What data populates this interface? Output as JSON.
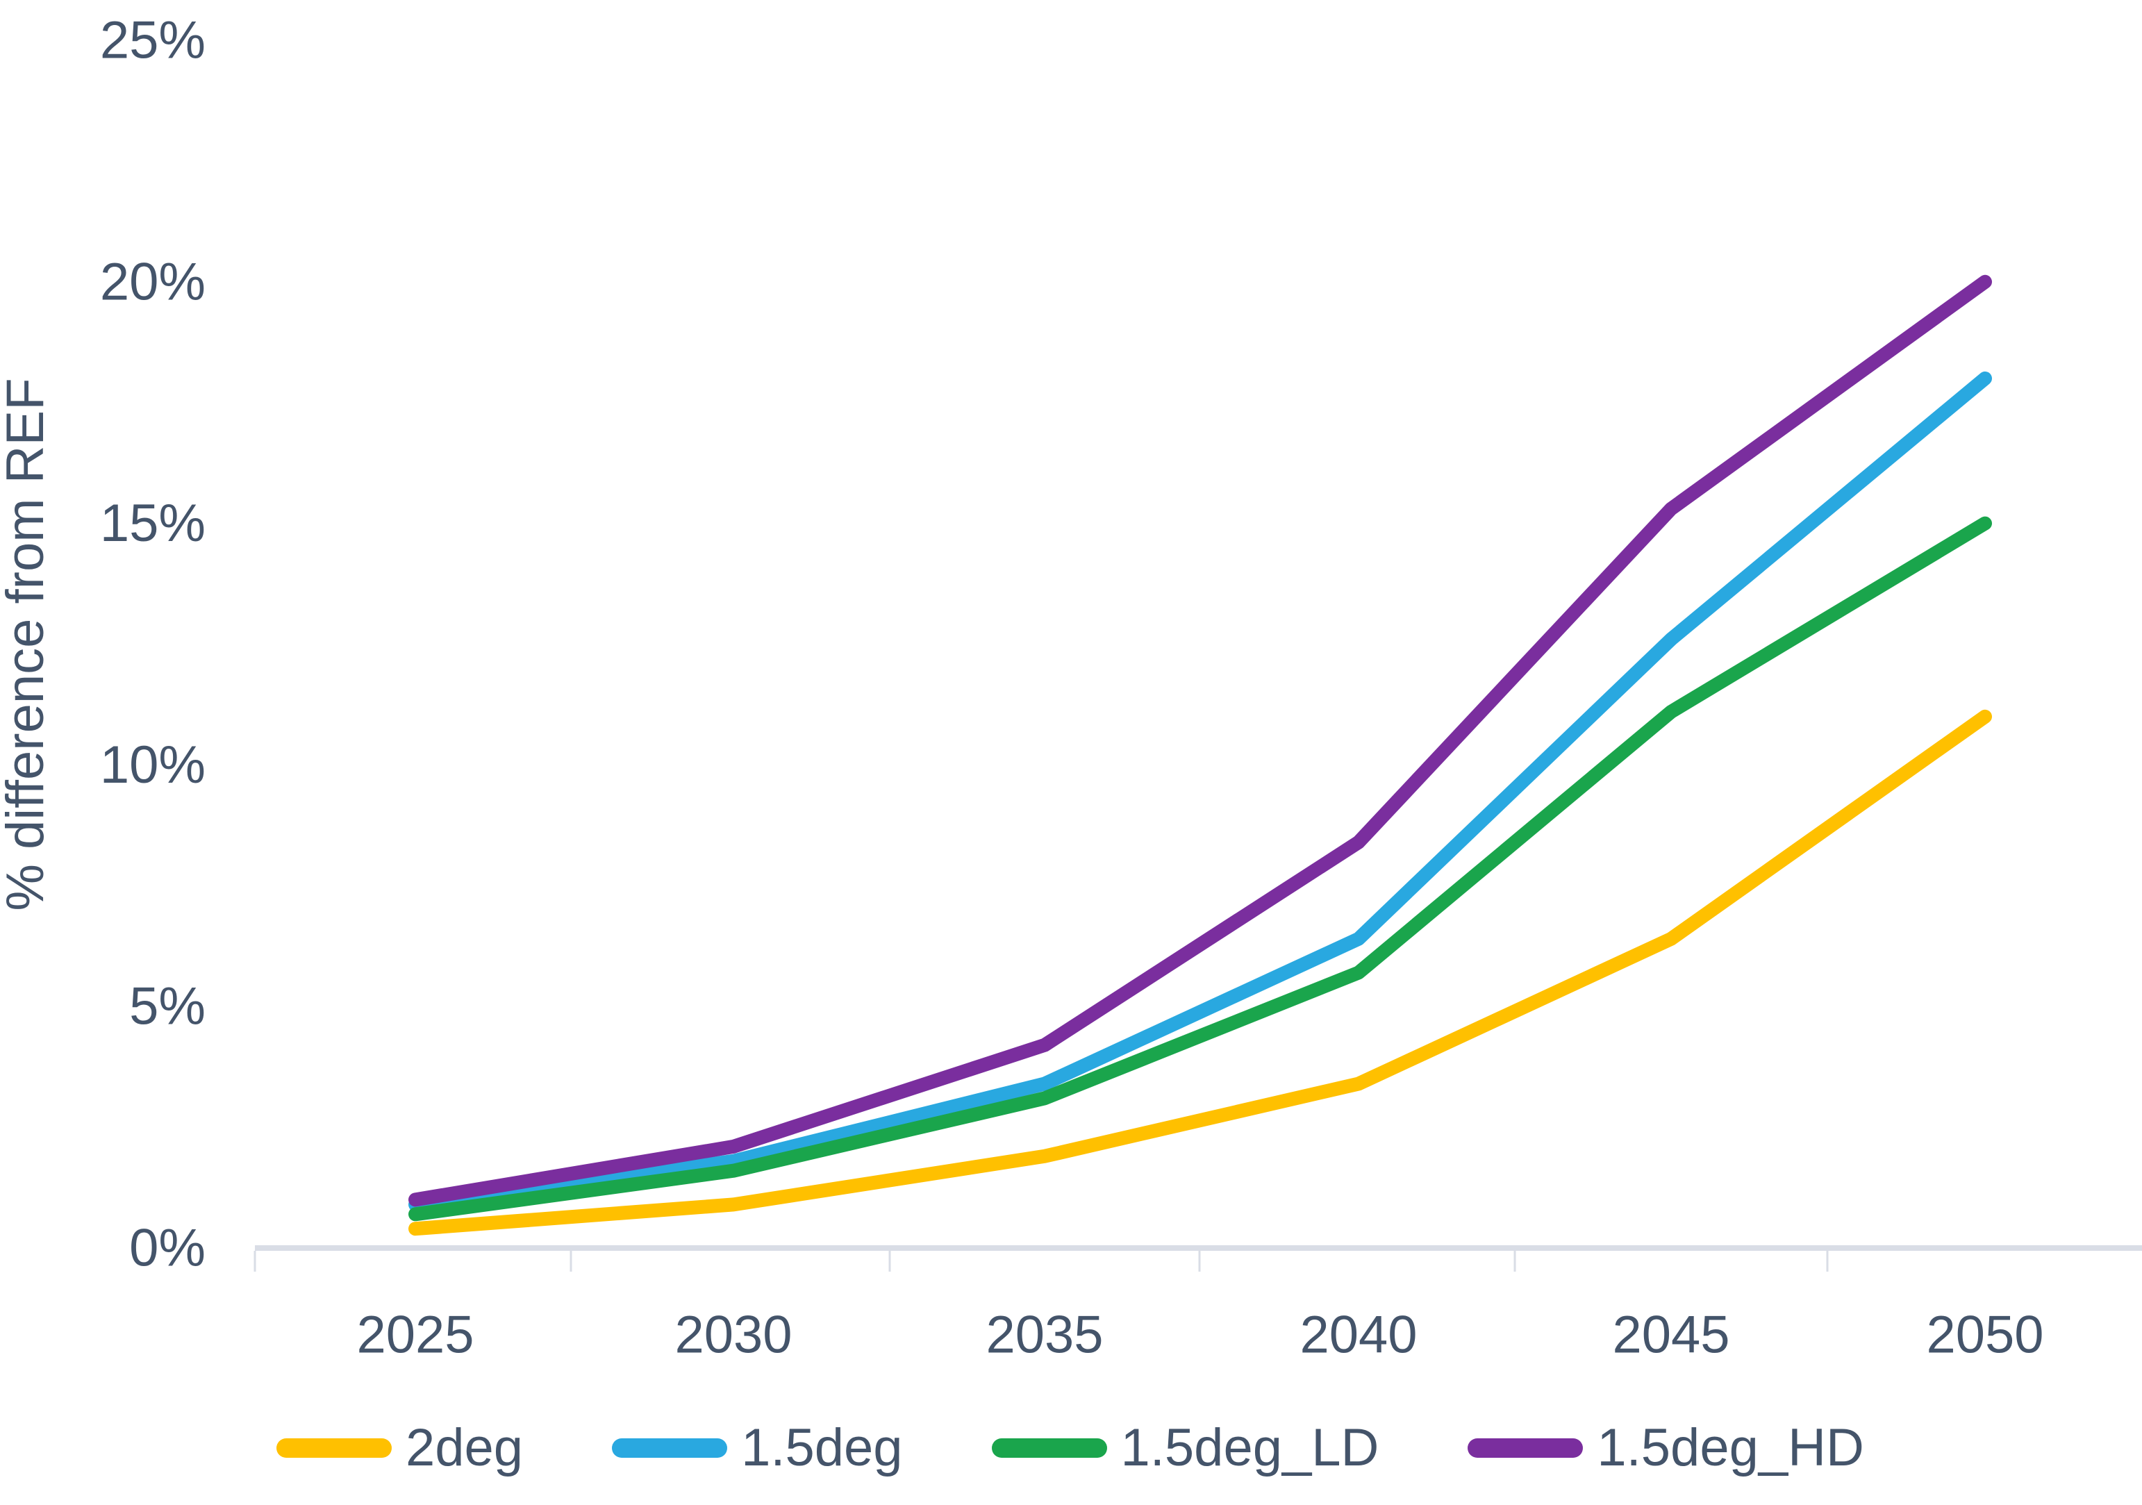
{
  "chart_data": {
    "type": "line",
    "title": "",
    "xlabel": "",
    "ylabel": "% difference from REF",
    "categories": [
      "2025",
      "2030",
      "2035",
      "2040",
      "2045",
      "2050"
    ],
    "series": [
      {
        "name": "2deg",
        "color": "#FFC000",
        "values": [
          0.4,
          0.9,
          1.9,
          3.4,
          6.4,
          11.0
        ]
      },
      {
        "name": "1.5deg",
        "color": "#29A8E0",
        "values": [
          0.9,
          1.8,
          3.4,
          6.4,
          12.6,
          18.0
        ]
      },
      {
        "name": "1.5deg_LD",
        "color": "#1AA54C",
        "values": [
          0.7,
          1.6,
          3.1,
          5.7,
          11.1,
          15.0
        ]
      },
      {
        "name": "1.5deg_HD",
        "color": "#7A2E9E",
        "values": [
          1.0,
          2.1,
          4.2,
          8.4,
          15.3,
          20.0
        ]
      }
    ],
    "ylim": [
      0,
      25
    ],
    "ytick_labels": [
      "0%",
      "5%",
      "10%",
      "15%",
      "20%",
      "25%"
    ],
    "ytick_values": [
      0,
      5,
      10,
      15,
      20,
      25
    ],
    "grid": false,
    "legend_position": "bottom",
    "axis_color": "#D9DDE6",
    "text_color": "#44546A"
  }
}
